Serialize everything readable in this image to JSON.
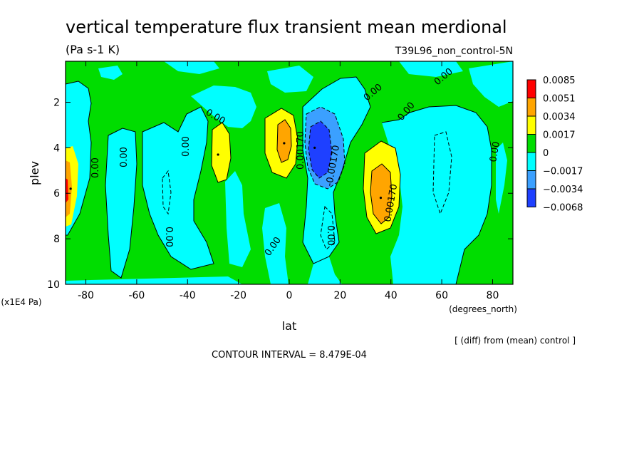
{
  "chart_data": {
    "type": "heatmap",
    "title": "vertical temperature flux transient mean merdional",
    "subtitle_left": "(Pa s-1 K)",
    "subtitle_right": "T39L96_non_control-5N",
    "xlabel": "lat",
    "xunits": "(degrees_north)",
    "ylabel": "plev",
    "yunits": "(x1E4 Pa)",
    "xlim": [
      -88,
      88
    ],
    "ylim": [
      10,
      0.2
    ],
    "x_ticks": [
      -80,
      -60,
      -40,
      -20,
      0,
      20,
      40,
      60,
      80
    ],
    "y_ticks": [
      2,
      4,
      6,
      8,
      10
    ],
    "footer_note": "[ (diff) from (mean) control ]",
    "contour_interval_text": "CONTOUR INTERVAL = 8.479E-04",
    "contour_labels": [
      "0.00",
      "0.00",
      "0.00",
      "0.00",
      "0.00",
      "0.00",
      "0.00",
      "0.00",
      "0.00",
      "0.00",
      "0.00",
      "0.00170",
      "-0.00170",
      "0.00170"
    ],
    "colorbar": [
      {
        "label": "0.0085",
        "color": "#ff0000"
      },
      {
        "label": "0.0051",
        "color": "#ffa500"
      },
      {
        "label": "0.0034",
        "color": "#ffff00"
      },
      {
        "label": "0.0017",
        "color": "#00dd00"
      },
      {
        "label": "0",
        "color": "#00ffff"
      },
      {
        "label": "−0.0017",
        "color": "#3ba0ff"
      },
      {
        "label": "−0.0034",
        "color": "#1e40ff"
      },
      {
        "label": "−0.0068",
        "color": ""
      }
    ],
    "level_colors": {
      "neg3": "#1e40ff",
      "neg2": "#3ba0ff",
      "neg1": "#00ffff",
      "zero": "#00dd00",
      "pos1": "#ffff00",
      "pos2": "#ffa500",
      "pos3": "#ff0000"
    },
    "features": [
      {
        "name": "negative minimum",
        "lat": 10,
        "plev": 4.0,
        "value": -0.006
      },
      {
        "name": "positive maximum",
        "lat": 36,
        "plev": 6.2,
        "value": 0.0048
      },
      {
        "name": "positive maximum",
        "lat": -2,
        "plev": 3.8,
        "value": 0.0036
      },
      {
        "name": "positive maximum",
        "lat": -28,
        "plev": 4.3,
        "value": 0.003
      },
      {
        "name": "positive maximum",
        "lat": -86,
        "plev": 5.8,
        "value": 0.0036
      }
    ]
  }
}
